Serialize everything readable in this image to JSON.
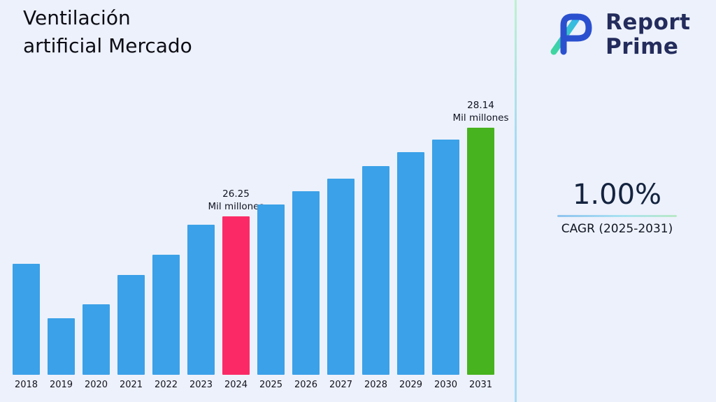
{
  "header": {
    "title": "Ventilación\nartificial Mercado"
  },
  "brand": {
    "name": "Report\nPrime",
    "logo_icon": "report-prime-logo",
    "text_color": "#232c5c",
    "logo_blue": "#2b50cf",
    "logo_green": "#3fd6a0",
    "logo_teal": "#35b8e8"
  },
  "cagr": {
    "value": "1.00%",
    "label": "CAGR (2025-2031)"
  },
  "chart_data": {
    "type": "bar",
    "title": "Ventilación artificial Mercado",
    "unit": "Mil millones",
    "categories": [
      "2018",
      "2019",
      "2020",
      "2021",
      "2022",
      "2023",
      "2024",
      "2025",
      "2026",
      "2027",
      "2028",
      "2029",
      "2030",
      "2031"
    ],
    "values": [
      25.26,
      24.13,
      24.42,
      25.03,
      25.45,
      26.08,
      26.25,
      26.51,
      26.78,
      27.04,
      27.31,
      27.59,
      27.86,
      28.14
    ],
    "labeled_points": [
      {
        "category": "2024",
        "value_label": "26.25",
        "unit_label": "Mil millones"
      },
      {
        "category": "2031",
        "value_label": "28.14",
        "unit_label": "Mil millones"
      }
    ],
    "colors": {
      "default": "#3BA1E8",
      "2024": "#FB2A66",
      "2031": "#47B31E"
    },
    "ylim": [
      22.95,
      28.7
    ],
    "xlabel": "",
    "ylabel": "",
    "grid": false,
    "legend": "none"
  }
}
